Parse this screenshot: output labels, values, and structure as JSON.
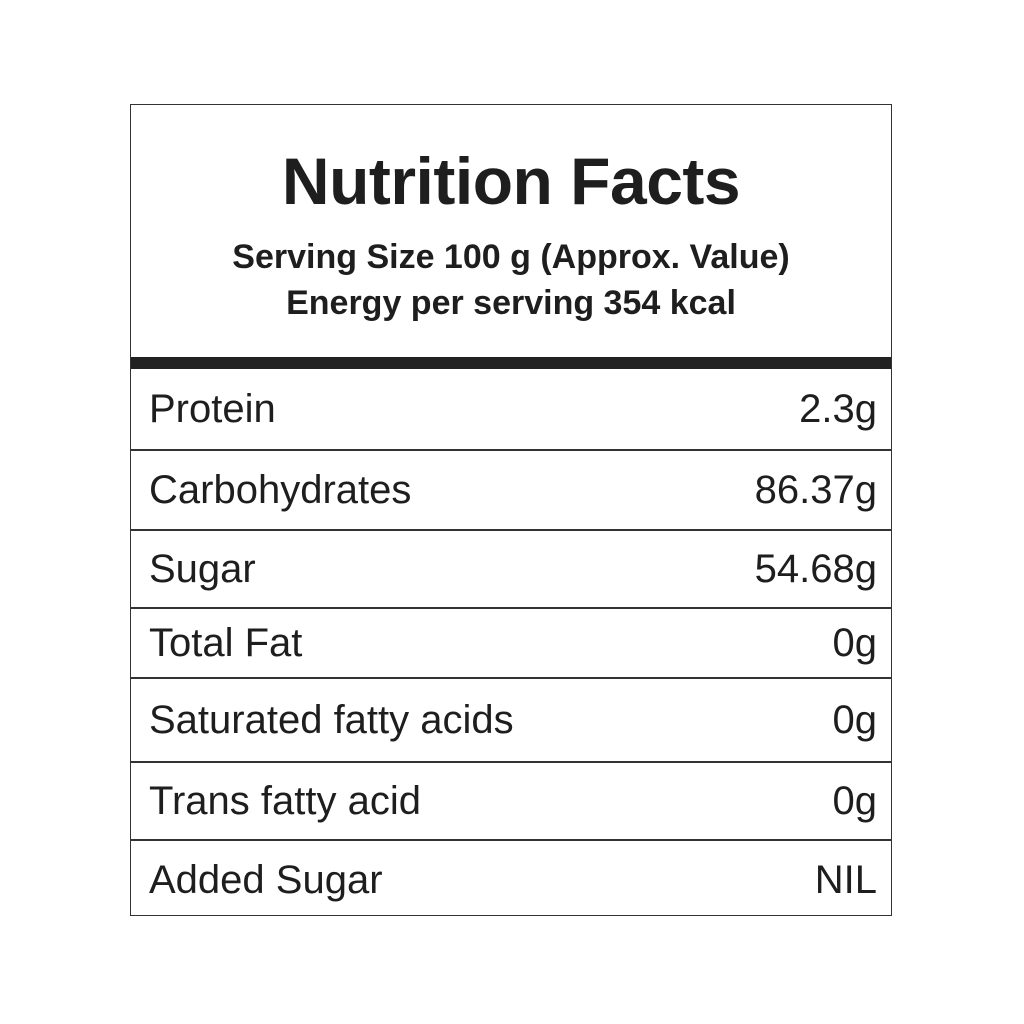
{
  "label": {
    "title": "Nutrition Facts",
    "serving_size": "Serving Size 100 g (Approx. Value)",
    "energy": "Energy per serving 354 kcal",
    "rows": [
      {
        "name": "Protein",
        "value": "2.3g"
      },
      {
        "name": "Carbohydrates",
        "value": "86.37g"
      },
      {
        "name": "Sugar",
        "value": "54.68g"
      },
      {
        "name": "Total Fat",
        "value": "0g"
      },
      {
        "name": "Saturated fatty acids",
        "value": "0g"
      },
      {
        "name": "Trans fatty acid",
        "value": "0g"
      },
      {
        "name": "Added Sugar",
        "value": "NIL"
      }
    ]
  },
  "colors": {
    "text": "#1e1e1e",
    "border": "#333333",
    "background": "#ffffff"
  }
}
